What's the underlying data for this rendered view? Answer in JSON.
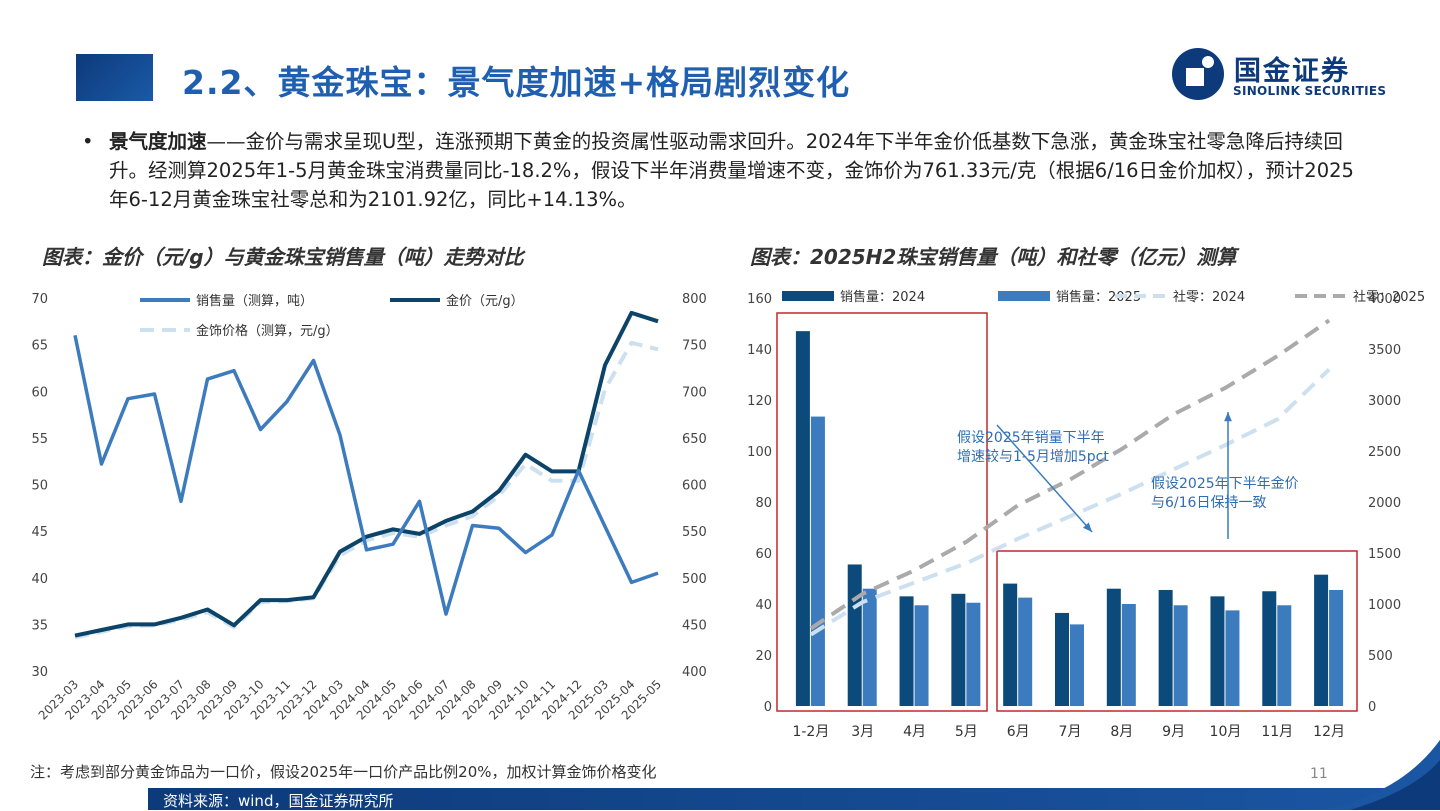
{
  "header": {
    "title": "2.2、黄金珠宝：景气度加速+格局剧烈变化",
    "logo_cn": "国金证券",
    "logo_en": "SINOLINK SECURITIES"
  },
  "bullet": {
    "dot": "•",
    "bold": "景气度加速",
    "text": "——金价与需求呈现U型，连涨预期下黄金的投资属性驱动需求回升。2024年下半年金价低基数下急涨，黄金珠宝社零急降后持续回升。经测算2025年1-5月黄金珠宝消费量同比-18.2%，假设下半年消费量增速不变，金饰价为761.33元/克（根据6/16日金价加权），预计2025年6-12月黄金珠宝社零总和为2101.92亿，同比+14.13%。"
  },
  "figures": {
    "left_title": "图表：金价（元/g）与黄金珠宝销售量（吨）走势对比",
    "right_title": "图表：2025H2珠宝销售量（吨）和社零（亿元）测算"
  },
  "note": "注：考虑到部分黄金饰品为一口价，假设2025年一口价产品比例20%，加权计算金饰价格变化",
  "source": "资料来源：wind，国金证券研究所",
  "page_number": "11",
  "chart_data": [
    {
      "type": "line",
      "x": [
        "2023-03",
        "2023-04",
        "2023-05",
        "2023-06",
        "2023-07",
        "2023-08",
        "2023-09",
        "2023-10",
        "2023-11",
        "2023-12",
        "2024-03",
        "2024-04",
        "2024-05",
        "2024-06",
        "2024-07",
        "2024-08",
        "2024-09",
        "2024-10",
        "2024-11",
        "2024-12",
        "2025-03",
        "2025-04",
        "2025-05"
      ],
      "y_left_ticks": [
        "30",
        "35",
        "40",
        "45",
        "50",
        "55",
        "60",
        "65",
        "70"
      ],
      "y_right_ticks": [
        "400",
        "450",
        "500",
        "550",
        "600",
        "650",
        "700",
        "750",
        "800"
      ],
      "ylim_left": [
        30,
        70
      ],
      "ylim_right": [
        400,
        800
      ],
      "series": [
        {
          "name": "销售量（测算，吨）",
          "axis": "left",
          "color": "#3d7bbf",
          "values": [
            66,
            52.2,
            59.2,
            59.7,
            48.2,
            61.3,
            62.2,
            55.9,
            58.9,
            63.3,
            55.3,
            43,
            43.6,
            48.2,
            36.1,
            45.6,
            45.3,
            42.7,
            44.6,
            51.5,
            45.5,
            39.5,
            40.5
          ]
        },
        {
          "name": "金价（元/g）",
          "axis": "right",
          "color": "#0b4468",
          "values": [
            438,
            444,
            450,
            450,
            457,
            466,
            449,
            476,
            476,
            479,
            528,
            544,
            552,
            547,
            561,
            571,
            593,
            632,
            614,
            614,
            728,
            784,
            775
          ]
        },
        {
          "name": "金饰价格（测算，元/g）",
          "axis": "right",
          "color": "#cde0f0",
          "dashed": true,
          "values": [
            436,
            442,
            448,
            449,
            455,
            463,
            447,
            474,
            475,
            478,
            524,
            540,
            548,
            544,
            556,
            566,
            588,
            622,
            604,
            604,
            702,
            752,
            745
          ]
        }
      ]
    },
    {
      "type": "bar",
      "categories": [
        "1-2月",
        "3月",
        "4月",
        "5月",
        "6月",
        "7月",
        "8月",
        "9月",
        "10月",
        "11月",
        "12月"
      ],
      "y_left_ticks": [
        "0",
        "20",
        "40",
        "60",
        "80",
        "100",
        "120",
        "140",
        "160"
      ],
      "y_right_ticks": [
        "0",
        "500",
        "1000",
        "1500",
        "2000",
        "2500",
        "3000",
        "3500",
        "4000"
      ],
      "ylim_left": [
        0,
        160
      ],
      "ylim_right": [
        0,
        4000
      ],
      "series": [
        {
          "name": "销售量：2024",
          "type": "bar",
          "axis": "left",
          "color": "#0b4a7a",
          "values": [
            147,
            55.5,
            43,
            44,
            48,
            36.5,
            46,
            45.5,
            43,
            45,
            51.5
          ]
        },
        {
          "name": "销售量：2025",
          "type": "bar",
          "axis": "left",
          "color": "#3d7bbf",
          "values": [
            113.5,
            46,
            39.5,
            40.5,
            42.5,
            32,
            40,
            39.5,
            37.5,
            39.5,
            45.5
          ]
        },
        {
          "name": "社零：2024",
          "type": "line",
          "axis": "right",
          "color": "#cde0f0",
          "dashed": true,
          "values": [
            700,
            1020,
            1210,
            1400,
            1640,
            1860,
            2080,
            2320,
            2560,
            2810,
            3300
          ]
        },
        {
          "name": "社零：2025",
          "type": "line",
          "axis": "right",
          "color": "#aaaaaa",
          "dashed": true,
          "values": [
            760,
            1100,
            1330,
            1610,
            1970,
            2220,
            2520,
            2860,
            3120,
            3430,
            3780
          ]
        }
      ],
      "annotations": [
        {
          "text_lines": [
            "假设2025年销量下半年",
            "增速较与1-5月增加5pct"
          ]
        },
        {
          "text_lines": [
            "假设2025年下半年金价",
            "与6/16日保持一致"
          ]
        }
      ]
    }
  ]
}
